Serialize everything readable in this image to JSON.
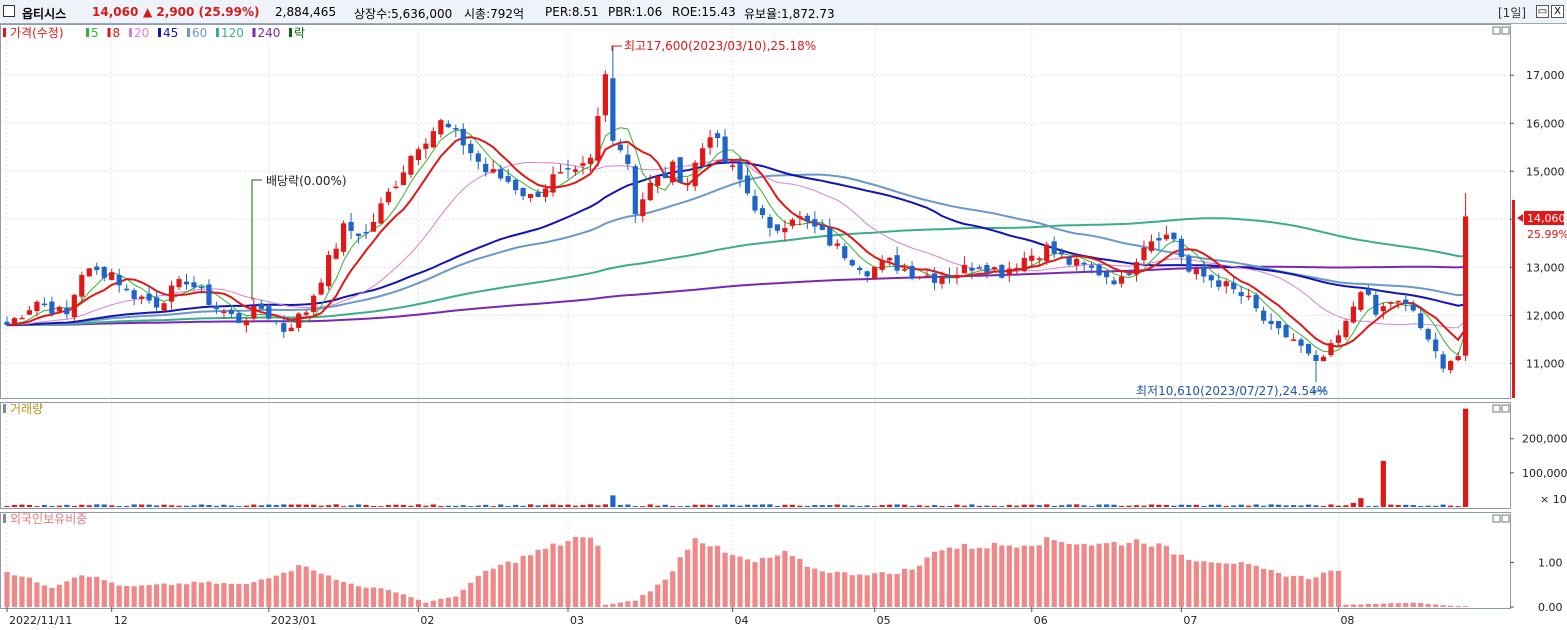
{
  "header": {
    "stock_name": "옵티시스",
    "price": "14,060",
    "change": "▲ 2,900 (25.99%)",
    "volume": "2,884,465",
    "shares": "상장수:5,636,000",
    "market_cap": "시총:792억",
    "per": "PER:8.51",
    "pbr": "PBR:1.06",
    "roe": "ROE:15.43",
    "float_ratio": "유보율:1,872.73",
    "period": "[1일]",
    "close_button": "X"
  },
  "legend": {
    "price": "가격(수정)",
    "ma": [
      {
        "label": "5",
        "color": "#33b233"
      },
      {
        "label": "8",
        "color": "#e01818"
      },
      {
        "label": "20",
        "color": "#d383cd"
      },
      {
        "label": "45",
        "color": "#1414b4"
      },
      {
        "label": "60",
        "color": "#6a98c8"
      },
      {
        "label": "120",
        "color": "#3aae8c"
      },
      {
        "label": "240",
        "color": "#7a28b4"
      },
      {
        "label": "락",
        "color": "#0a6a0a"
      }
    ]
  },
  "panels": {
    "volume_title": "거래량",
    "foreign_title": "외국인보유비중",
    "volume_unit": "× 10"
  },
  "annotations": {
    "high": "최고17,600(2023/03/10),25.18%",
    "low": "최저10,610(2023/07/27),24.54%",
    "dividend": "배당락(0.00%)",
    "current_price": "14,060",
    "current_change": "25.99%"
  },
  "colors": {
    "up": "#e01818",
    "down": "#1f64c8",
    "foreign": "#f08888"
  },
  "chart_data": {
    "type": "candlestick",
    "price_axis": {
      "ticks": [
        11000,
        12000,
        13000,
        14000,
        15000,
        16000,
        17000
      ],
      "range": [
        10300,
        17900
      ]
    },
    "volume_axis": {
      "ticks": [
        100000,
        200000
      ],
      "range": [
        0,
        290000
      ]
    },
    "foreign_axis": {
      "ticks": [
        "0.00",
        "1.00"
      ],
      "range": [
        0,
        2.0
      ]
    },
    "x_labels": [
      {
        "label": "2022/11/11",
        "index": 0
      },
      {
        "label": "12",
        "index": 14
      },
      {
        "label": "2023/01",
        "index": 35
      },
      {
        "label": "02",
        "index": 55
      },
      {
        "label": "03",
        "index": 75
      },
      {
        "label": "04",
        "index": 97
      },
      {
        "label": "05",
        "index": 116
      },
      {
        "label": "06",
        "index": 137
      },
      {
        "label": "07",
        "index": 157
      },
      {
        "label": "08",
        "index": 178
      }
    ],
    "high_point": {
      "index": 81,
      "value": 17600,
      "date": "2023/03/10"
    },
    "low_point": {
      "index": 175,
      "value": 10610,
      "date": "2023/07/27"
    },
    "last_close": 14060,
    "close_anchors": [
      [
        0,
        11800
      ],
      [
        4,
        12300
      ],
      [
        6,
        12150
      ],
      [
        8,
        12000
      ],
      [
        10,
        12900
      ],
      [
        14,
        12900
      ],
      [
        16,
        12500
      ],
      [
        20,
        12250
      ],
      [
        24,
        12750
      ],
      [
        28,
        12150
      ],
      [
        31,
        11900
      ],
      [
        34,
        12150
      ],
      [
        37,
        11700
      ],
      [
        40,
        12100
      ],
      [
        42,
        12800
      ],
      [
        45,
        13800
      ],
      [
        48,
        13700
      ],
      [
        52,
        14800
      ],
      [
        55,
        15600
      ],
      [
        58,
        16000
      ],
      [
        61,
        15600
      ],
      [
        64,
        15000
      ],
      [
        67,
        14800
      ],
      [
        70,
        14450
      ],
      [
        73,
        14850
      ],
      [
        76,
        14900
      ],
      [
        78,
        15200
      ],
      [
        80,
        17000
      ],
      [
        81,
        15800
      ],
      [
        83,
        15200
      ],
      [
        84,
        14200
      ],
      [
        86,
        14700
      ],
      [
        89,
        15050
      ],
      [
        91,
        14800
      ],
      [
        94,
        15850
      ],
      [
        96,
        15200
      ],
      [
        98,
        14800
      ],
      [
        100,
        14300
      ],
      [
        102,
        13700
      ],
      [
        105,
        14100
      ],
      [
        108,
        13800
      ],
      [
        111,
        13400
      ],
      [
        115,
        12950
      ],
      [
        118,
        13100
      ],
      [
        121,
        12900
      ],
      [
        124,
        12800
      ],
      [
        127,
        12900
      ],
      [
        130,
        13100
      ],
      [
        133,
        12900
      ],
      [
        136,
        13200
      ],
      [
        139,
        13400
      ],
      [
        142,
        13100
      ],
      [
        146,
        12900
      ],
      [
        149,
        12700
      ],
      [
        152,
        13500
      ],
      [
        154,
        13700
      ],
      [
        156,
        13600
      ],
      [
        158,
        12900
      ],
      [
        162,
        12700
      ],
      [
        166,
        12300
      ],
      [
        169,
        11700
      ],
      [
        172,
        11500
      ],
      [
        175,
        10950
      ],
      [
        177,
        11300
      ],
      [
        179,
        11800
      ],
      [
        181,
        12600
      ],
      [
        183,
        12000
      ],
      [
        185,
        12300
      ],
      [
        188,
        12100
      ],
      [
        190,
        11400
      ],
      [
        192,
        11000
      ],
      [
        194,
        11160
      ],
      [
        195,
        14060
      ]
    ],
    "volume_spikes": [
      [
        81,
        34000
      ],
      [
        180,
        12000
      ],
      [
        181,
        26000
      ],
      [
        184,
        135000
      ],
      [
        195,
        288000
      ]
    ],
    "foreign_anchors": [
      [
        0,
        0.8
      ],
      [
        6,
        0.45
      ],
      [
        10,
        0.75
      ],
      [
        16,
        0.45
      ],
      [
        26,
        0.55
      ],
      [
        32,
        0.5
      ],
      [
        37,
        0.8
      ],
      [
        40,
        0.95
      ],
      [
        44,
        0.6
      ],
      [
        48,
        0.45
      ],
      [
        52,
        0.35
      ],
      [
        56,
        0.1
      ],
      [
        60,
        0.25
      ],
      [
        64,
        0.8
      ],
      [
        68,
        1.05
      ],
      [
        72,
        1.3
      ],
      [
        76,
        1.55
      ],
      [
        79,
        1.45
      ],
      [
        80,
        0.05
      ],
      [
        84,
        0.15
      ],
      [
        88,
        0.6
      ],
      [
        92,
        1.6
      ],
      [
        96,
        1.2
      ],
      [
        100,
        1.0
      ],
      [
        104,
        1.2
      ],
      [
        108,
        0.85
      ],
      [
        112,
        0.75
      ],
      [
        118,
        0.75
      ],
      [
        122,
        0.9
      ],
      [
        124,
        1.3
      ],
      [
        128,
        1.35
      ],
      [
        134,
        1.4
      ],
      [
        140,
        1.5
      ],
      [
        146,
        1.4
      ],
      [
        152,
        1.5
      ],
      [
        158,
        1.1
      ],
      [
        164,
        1.0
      ],
      [
        170,
        0.75
      ],
      [
        174,
        0.65
      ],
      [
        178,
        0.85
      ],
      [
        179,
        0.05
      ],
      [
        188,
        0.1
      ],
      [
        195,
        0.0
      ]
    ]
  }
}
